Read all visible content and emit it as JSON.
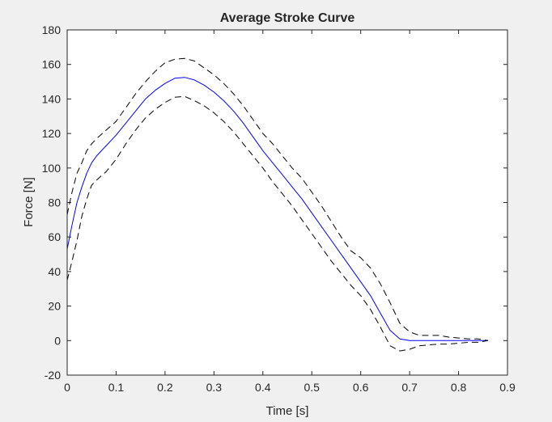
{
  "chart_data": {
    "type": "line",
    "title": "Average Stroke Curve",
    "xlabel": "Time [s]",
    "ylabel": "Force [N]",
    "xlim": [
      0,
      0.9
    ],
    "ylim": [
      -20,
      180
    ],
    "xticks": [
      "0",
      "0.1",
      "0.2",
      "0.3",
      "0.4",
      "0.5",
      "0.6",
      "0.7",
      "0.8",
      "0.9"
    ],
    "yticks": [
      "-20",
      "0",
      "20",
      "40",
      "60",
      "80",
      "100",
      "120",
      "140",
      "160",
      "180"
    ],
    "grid": false,
    "legend": "none",
    "colors": {
      "mean": "#0000ff",
      "bounds": "#000000",
      "plot_bg": "#ffffff",
      "figure_bg": "#f0f0f0",
      "axis": "#262626"
    },
    "series": [
      {
        "style": "solid",
        "color": "#0000ff",
        "x": [
          0,
          0.01,
          0.02,
          0.03,
          0.04,
          0.05,
          0.06,
          0.08,
          0.1,
          0.12,
          0.14,
          0.16,
          0.18,
          0.2,
          0.22,
          0.24,
          0.26,
          0.28,
          0.3,
          0.32,
          0.34,
          0.36,
          0.38,
          0.4,
          0.42,
          0.44,
          0.46,
          0.48,
          0.5,
          0.52,
          0.54,
          0.56,
          0.58,
          0.6,
          0.62,
          0.64,
          0.66,
          0.68,
          0.7,
          0.72,
          0.74,
          0.76,
          0.78,
          0.8,
          0.82,
          0.84,
          0.86
        ],
        "y": [
          53,
          67,
          80,
          89,
          97,
          103,
          107,
          113,
          119,
          126,
          133,
          140,
          145,
          149,
          152,
          152.5,
          151,
          148,
          144,
          139,
          133,
          126,
          118,
          110,
          103,
          96,
          89,
          82,
          74,
          66,
          58,
          50,
          42,
          34,
          26,
          16,
          6,
          1,
          0,
          0,
          0,
          0,
          0,
          0,
          0,
          0,
          0
        ]
      },
      {
        "style": "dashed",
        "color": "#000000",
        "x": [
          0,
          0.01,
          0.02,
          0.03,
          0.04,
          0.05,
          0.06,
          0.08,
          0.1,
          0.12,
          0.14,
          0.16,
          0.18,
          0.2,
          0.22,
          0.24,
          0.26,
          0.28,
          0.3,
          0.32,
          0.34,
          0.36,
          0.38,
          0.4,
          0.42,
          0.44,
          0.46,
          0.48,
          0.5,
          0.52,
          0.54,
          0.56,
          0.58,
          0.6,
          0.62,
          0.64,
          0.66,
          0.68,
          0.7,
          0.72,
          0.74,
          0.76,
          0.78,
          0.8,
          0.82,
          0.84,
          0.86
        ],
        "y": [
          73,
          86,
          97,
          103,
          110,
          114,
          117,
          122,
          127,
          135,
          143,
          150,
          156,
          161,
          163,
          163.5,
          162,
          158,
          154,
          149,
          143,
          136,
          128,
          120,
          114,
          107,
          100,
          94,
          86,
          78,
          69,
          60,
          52,
          48,
          42,
          33,
          22,
          10,
          5,
          3,
          3,
          3,
          2,
          1.5,
          1,
          1,
          0
        ]
      },
      {
        "style": "dashed",
        "color": "#000000",
        "x": [
          0,
          0.01,
          0.02,
          0.03,
          0.04,
          0.05,
          0.06,
          0.08,
          0.1,
          0.12,
          0.14,
          0.16,
          0.18,
          0.2,
          0.22,
          0.24,
          0.26,
          0.28,
          0.3,
          0.32,
          0.34,
          0.36,
          0.38,
          0.4,
          0.42,
          0.44,
          0.46,
          0.48,
          0.5,
          0.52,
          0.54,
          0.56,
          0.58,
          0.6,
          0.62,
          0.64,
          0.66,
          0.68,
          0.7,
          0.72,
          0.74,
          0.76,
          0.78,
          0.8,
          0.82,
          0.84,
          0.86
        ],
        "y": [
          35,
          46,
          58,
          72,
          82,
          90,
          93,
          98,
          105,
          114,
          122,
          129,
          134,
          138,
          141,
          141.5,
          139,
          136,
          132,
          127,
          121,
          114,
          107,
          100,
          92,
          85,
          78,
          70,
          62,
          54,
          46,
          39,
          32,
          26,
          18,
          8,
          -3,
          -6,
          -5,
          -3,
          -2.5,
          -2,
          -2,
          -1.5,
          -1,
          -1,
          0
        ]
      }
    ]
  }
}
